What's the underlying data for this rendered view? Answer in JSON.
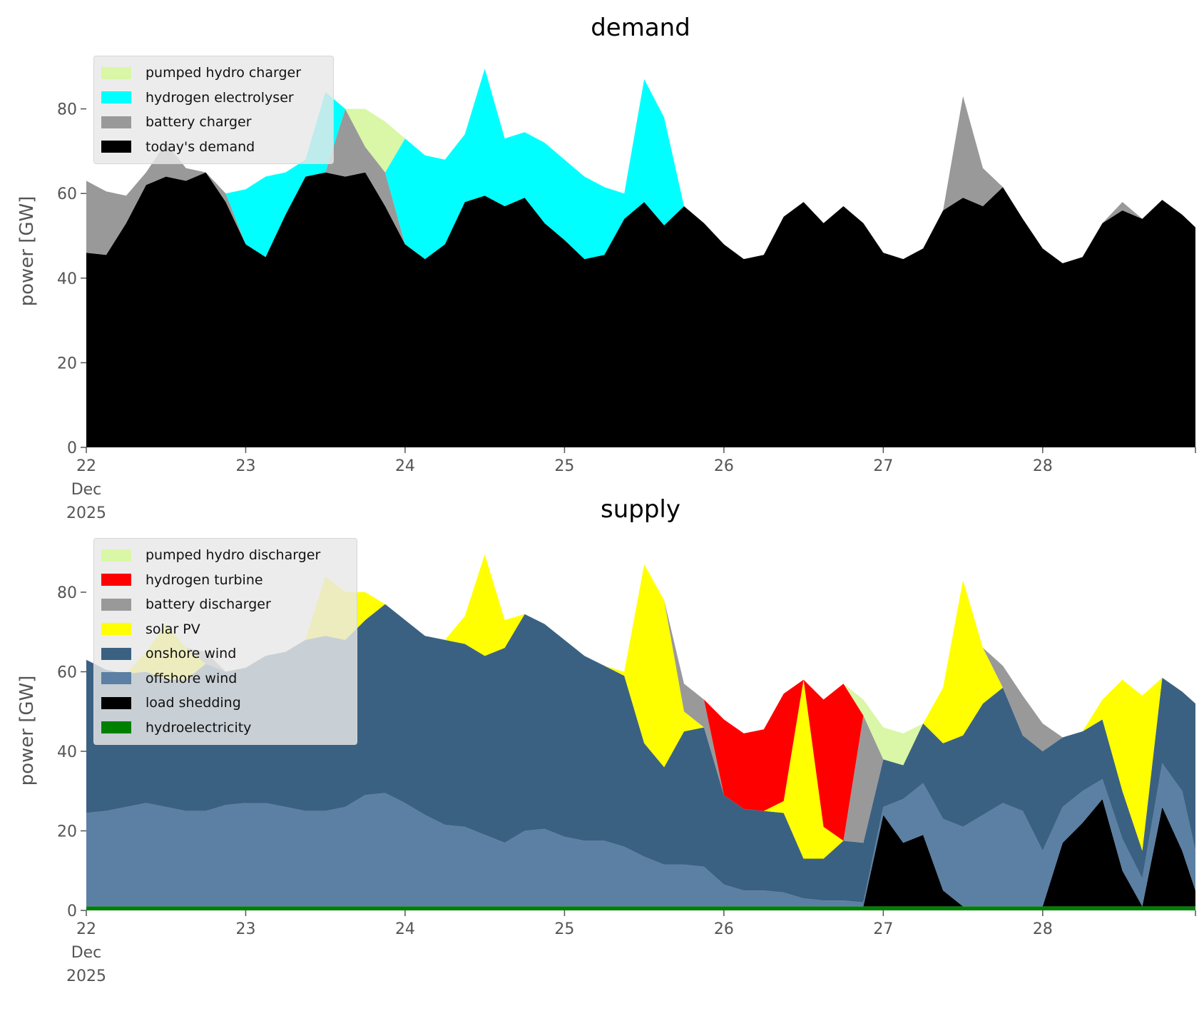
{
  "chart_data": [
    {
      "type": "area",
      "stacked": true,
      "title": "demand",
      "xlabel": "",
      "ylabel": "power [GW]",
      "ylim": [
        0,
        95
      ],
      "yticks": [
        0,
        20,
        40,
        60,
        80
      ],
      "xticks": [
        "2025-12-22 00:00",
        "2025-12-23 00:00",
        "2025-12-24 00:00",
        "2025-12-25 00:00",
        "2025-12-26 00:00",
        "2025-12-27 00:00",
        "2025-12-28 00:00"
      ],
      "xtick_labels": [
        "22\nDec\n2025",
        "23",
        "24",
        "25",
        "26",
        "27",
        "28"
      ],
      "xlim": [
        "2025-12-22 00:00",
        "2025-12-28 23:00"
      ],
      "grid": false,
      "legend_position": "upper-left",
      "x": [
        "2025-12-22 00:00",
        "2025-12-22 03:00",
        "2025-12-22 06:00",
        "2025-12-22 09:00",
        "2025-12-22 12:00",
        "2025-12-22 15:00",
        "2025-12-22 18:00",
        "2025-12-22 21:00",
        "2025-12-23 00:00",
        "2025-12-23 03:00",
        "2025-12-23 06:00",
        "2025-12-23 09:00",
        "2025-12-23 12:00",
        "2025-12-23 15:00",
        "2025-12-23 18:00",
        "2025-12-23 21:00",
        "2025-12-24 00:00",
        "2025-12-24 03:00",
        "2025-12-24 06:00",
        "2025-12-24 09:00",
        "2025-12-24 12:00",
        "2025-12-24 15:00",
        "2025-12-24 18:00",
        "2025-12-24 21:00",
        "2025-12-25 00:00",
        "2025-12-25 03:00",
        "2025-12-25 06:00",
        "2025-12-25 09:00",
        "2025-12-25 12:00",
        "2025-12-25 15:00",
        "2025-12-25 18:00",
        "2025-12-25 21:00",
        "2025-12-26 00:00",
        "2025-12-26 03:00",
        "2025-12-26 06:00",
        "2025-12-26 09:00",
        "2025-12-26 12:00",
        "2025-12-26 15:00",
        "2025-12-26 18:00",
        "2025-12-26 21:00",
        "2025-12-27 00:00",
        "2025-12-27 03:00",
        "2025-12-27 06:00",
        "2025-12-27 09:00",
        "2025-12-27 12:00",
        "2025-12-27 15:00",
        "2025-12-27 18:00",
        "2025-12-27 21:00",
        "2025-12-28 00:00",
        "2025-12-28 03:00",
        "2025-12-28 06:00",
        "2025-12-28 09:00",
        "2025-12-28 12:00",
        "2025-12-28 15:00",
        "2025-12-28 18:00",
        "2025-12-28 21:00",
        "2025-12-28 23:00"
      ],
      "series": [
        {
          "name": "today's demand",
          "color": "#000000",
          "values": [
            46,
            45.5,
            53,
            62,
            64,
            63,
            65,
            58,
            48,
            45,
            55,
            64,
            65,
            64,
            65,
            57,
            48,
            44.5,
            48,
            58,
            59.5,
            57,
            59,
            53,
            49,
            44.5,
            45.5,
            54,
            58,
            52.5,
            57,
            53,
            48,
            44.5,
            45.5,
            54.5,
            58,
            53,
            57,
            53,
            46,
            44.5,
            47,
            56,
            59,
            57,
            61.5,
            54,
            47,
            43.5,
            45,
            53,
            56,
            54,
            58.5,
            55,
            52
          ]
        },
        {
          "name": "battery charger",
          "color": "#999999",
          "values": [
            17,
            15,
            6.5,
            3,
            8,
            3,
            0,
            2,
            0,
            0,
            0,
            0,
            0,
            16,
            6,
            8,
            0,
            0,
            0,
            0,
            0,
            0,
            0,
            0,
            0,
            0,
            0,
            0,
            0,
            0,
            0,
            0,
            0,
            0,
            0,
            0,
            0,
            0,
            0,
            0,
            0,
            0,
            0,
            0,
            24,
            9,
            0,
            0,
            0,
            0,
            0,
            0,
            2,
            0,
            0,
            0,
            0
          ]
        },
        {
          "name": "hydrogen electrolyser",
          "color": "#00ffff",
          "values": [
            0,
            0,
            0,
            0,
            0,
            0,
            0,
            0,
            13,
            19,
            10,
            4,
            19,
            0,
            0,
            0,
            25,
            24.5,
            20,
            16,
            30,
            16,
            15.5,
            19,
            19,
            19.5,
            16,
            6,
            29,
            25.5,
            0,
            0,
            0,
            0,
            0,
            0,
            0,
            0,
            0,
            0,
            0,
            0,
            0,
            0,
            0,
            0,
            0,
            0,
            0,
            0,
            0,
            0,
            0,
            0,
            0,
            0,
            0
          ]
        },
        {
          "name": "pumped hydro charger",
          "color": "#d9f7a6",
          "values": [
            0,
            0,
            0,
            0,
            0,
            0,
            0,
            0,
            0,
            0,
            0,
            0,
            0,
            0,
            9,
            12,
            0,
            0,
            0,
            0,
            0,
            0,
            0,
            0,
            0,
            0,
            0,
            0,
            0,
            0,
            0,
            0,
            0,
            0,
            0,
            0,
            0,
            0,
            0,
            0,
            0,
            0,
            0,
            0,
            0,
            0,
            0,
            0,
            0,
            0,
            0,
            0,
            0,
            0,
            0,
            0,
            0
          ]
        }
      ]
    },
    {
      "type": "area",
      "stacked": true,
      "title": "supply",
      "xlabel": "",
      "ylabel": "power [GW]",
      "ylim": [
        0,
        95
      ],
      "yticks": [
        0,
        20,
        40,
        60,
        80
      ],
      "xticks": [
        "2025-12-22 00:00",
        "2025-12-23 00:00",
        "2025-12-24 00:00",
        "2025-12-25 00:00",
        "2025-12-26 00:00",
        "2025-12-27 00:00",
        "2025-12-28 00:00"
      ],
      "xtick_labels": [
        "22\nDec\n2025",
        "23",
        "24",
        "25",
        "26",
        "27",
        "28"
      ],
      "xlim": [
        "2025-12-22 00:00",
        "2025-12-28 23:00"
      ],
      "grid": false,
      "legend_position": "upper-left",
      "x": [
        "2025-12-22 00:00",
        "2025-12-22 03:00",
        "2025-12-22 06:00",
        "2025-12-22 09:00",
        "2025-12-22 12:00",
        "2025-12-22 15:00",
        "2025-12-22 18:00",
        "2025-12-22 21:00",
        "2025-12-23 00:00",
        "2025-12-23 03:00",
        "2025-12-23 06:00",
        "2025-12-23 09:00",
        "2025-12-23 12:00",
        "2025-12-23 15:00",
        "2025-12-23 18:00",
        "2025-12-23 21:00",
        "2025-12-24 00:00",
        "2025-12-24 03:00",
        "2025-12-24 06:00",
        "2025-12-24 09:00",
        "2025-12-24 12:00",
        "2025-12-24 15:00",
        "2025-12-24 18:00",
        "2025-12-24 21:00",
        "2025-12-25 00:00",
        "2025-12-25 03:00",
        "2025-12-25 06:00",
        "2025-12-25 09:00",
        "2025-12-25 12:00",
        "2025-12-25 15:00",
        "2025-12-25 18:00",
        "2025-12-25 21:00",
        "2025-12-26 00:00",
        "2025-12-26 03:00",
        "2025-12-26 06:00",
        "2025-12-26 09:00",
        "2025-12-26 12:00",
        "2025-12-26 15:00",
        "2025-12-26 18:00",
        "2025-12-26 21:00",
        "2025-12-27 00:00",
        "2025-12-27 03:00",
        "2025-12-27 06:00",
        "2025-12-27 09:00",
        "2025-12-27 12:00",
        "2025-12-27 15:00",
        "2025-12-27 18:00",
        "2025-12-27 21:00",
        "2025-12-28 00:00",
        "2025-12-28 03:00",
        "2025-12-28 06:00",
        "2025-12-28 09:00",
        "2025-12-28 12:00",
        "2025-12-28 15:00",
        "2025-12-28 18:00",
        "2025-12-28 21:00",
        "2025-12-28 23:00"
      ],
      "series": [
        {
          "name": "hydroelectricity",
          "color": "#008000",
          "values": [
            1,
            1,
            1,
            1,
            1,
            1,
            1,
            1,
            1,
            1,
            1,
            1,
            1,
            1,
            1,
            1,
            1,
            1,
            1,
            1,
            1,
            1,
            1,
            1,
            1,
            1,
            1,
            1,
            1,
            1,
            1,
            1,
            1,
            1,
            1,
            1,
            1,
            1,
            1,
            1,
            1,
            1,
            1,
            1,
            1,
            1,
            1,
            1,
            1,
            1,
            1,
            1,
            1,
            1,
            1,
            1,
            1
          ]
        },
        {
          "name": "load shedding",
          "color": "#000000",
          "values": [
            0,
            0,
            0,
            0,
            0,
            0,
            0,
            0,
            0,
            0,
            0,
            0,
            0,
            0,
            0,
            0,
            0,
            0,
            0,
            0,
            0,
            0,
            0,
            0,
            0,
            0,
            0,
            0,
            0,
            0,
            0,
            0,
            0,
            0,
            0,
            0,
            0,
            0,
            0,
            0,
            23,
            16,
            18,
            4,
            0,
            0,
            0,
            0,
            0,
            16,
            21,
            27,
            9,
            0,
            25,
            14,
            4
          ]
        },
        {
          "name": "offshore wind",
          "color": "#5b80a3",
          "values": [
            23.5,
            24,
            25,
            26,
            25,
            24,
            24,
            25.5,
            26,
            26,
            25,
            24,
            24,
            25,
            28,
            28.5,
            26,
            23,
            20.5,
            20,
            18,
            16,
            19,
            19.5,
            17.5,
            16.5,
            16.5,
            15,
            12.5,
            10.5,
            10.5,
            10,
            5.5,
            4,
            4,
            3.5,
            2,
            1.5,
            1.5,
            1,
            2,
            11,
            13,
            18,
            20,
            23,
            26,
            24,
            14,
            9,
            8,
            5,
            8,
            7,
            11,
            15,
            10
          ]
        },
        {
          "name": "onshore wind",
          "color": "#3b6182",
          "values": [
            38.5,
            35.5,
            33.5,
            33,
            32,
            33,
            37,
            33.5,
            34,
            37,
            39,
            43,
            44,
            42,
            44,
            47.5,
            46,
            45,
            46.5,
            46,
            45,
            49,
            54.5,
            51.5,
            49.5,
            46.5,
            44,
            43,
            28.5,
            24.5,
            33.5,
            35,
            22.5,
            20.5,
            20,
            20,
            10,
            10.5,
            15,
            15,
            12,
            8.5,
            15,
            19,
            23,
            28,
            29,
            19,
            25,
            17.5,
            15,
            15,
            12,
            7,
            21.5,
            25,
            37
          ]
        },
        {
          "name": "solar PV",
          "color": "#ffff00",
          "values": [
            0,
            0,
            0,
            5,
            14,
            8,
            0,
            0,
            0,
            0,
            0,
            0,
            15,
            12,
            7,
            0,
            0,
            0,
            0,
            7,
            25.5,
            7,
            0,
            0,
            0,
            0,
            0,
            1,
            45,
            42,
            5,
            0,
            0,
            0,
            0,
            3,
            45,
            8,
            0,
            0,
            0,
            0,
            0,
            14,
            39,
            14,
            0,
            0,
            0,
            0,
            0,
            5,
            28,
            39,
            0,
            0,
            0
          ]
        },
        {
          "name": "battery discharger",
          "color": "#999999",
          "values": [
            0,
            0,
            0,
            0,
            0,
            0,
            3,
            0,
            0,
            0,
            0,
            0,
            0,
            0,
            0,
            0,
            0,
            0,
            0,
            0,
            0,
            0,
            0,
            0,
            0,
            0,
            0,
            0,
            0,
            0,
            7,
            7,
            0,
            0,
            0,
            0,
            0,
            0,
            0,
            32,
            0,
            0,
            0,
            0,
            0,
            0,
            5.5,
            10,
            7,
            0,
            0,
            0,
            0,
            0,
            0,
            0,
            0
          ]
        },
        {
          "name": "hydrogen turbine",
          "color": "#ff0000",
          "values": [
            0,
            0,
            0,
            0,
            0,
            0,
            0,
            0,
            0,
            0,
            0,
            0,
            0,
            0,
            0,
            0,
            0,
            0,
            0,
            0,
            0,
            0,
            0,
            0,
            0,
            0,
            0,
            0,
            0,
            0,
            0,
            0,
            19,
            19,
            20.5,
            27,
            0,
            32,
            39.5,
            0,
            0,
            0,
            0,
            0,
            0,
            0,
            0,
            0,
            0,
            0,
            0,
            0,
            0,
            0,
            0,
            0,
            0
          ]
        },
        {
          "name": "pumped hydro discharger",
          "color": "#d9f7a6",
          "values": [
            0,
            0,
            0,
            0,
            0,
            0,
            0,
            0,
            0,
            0,
            0,
            0,
            0,
            0,
            0,
            0,
            0,
            0,
            0,
            0,
            0,
            0,
            0,
            0,
            0,
            0,
            0,
            0,
            0,
            0,
            0,
            0,
            0,
            0,
            0,
            0,
            0,
            0,
            0,
            4,
            8,
            8,
            0,
            0,
            0,
            0,
            0,
            0,
            0,
            0,
            0,
            0,
            0,
            0,
            0,
            0,
            0
          ]
        }
      ]
    }
  ]
}
